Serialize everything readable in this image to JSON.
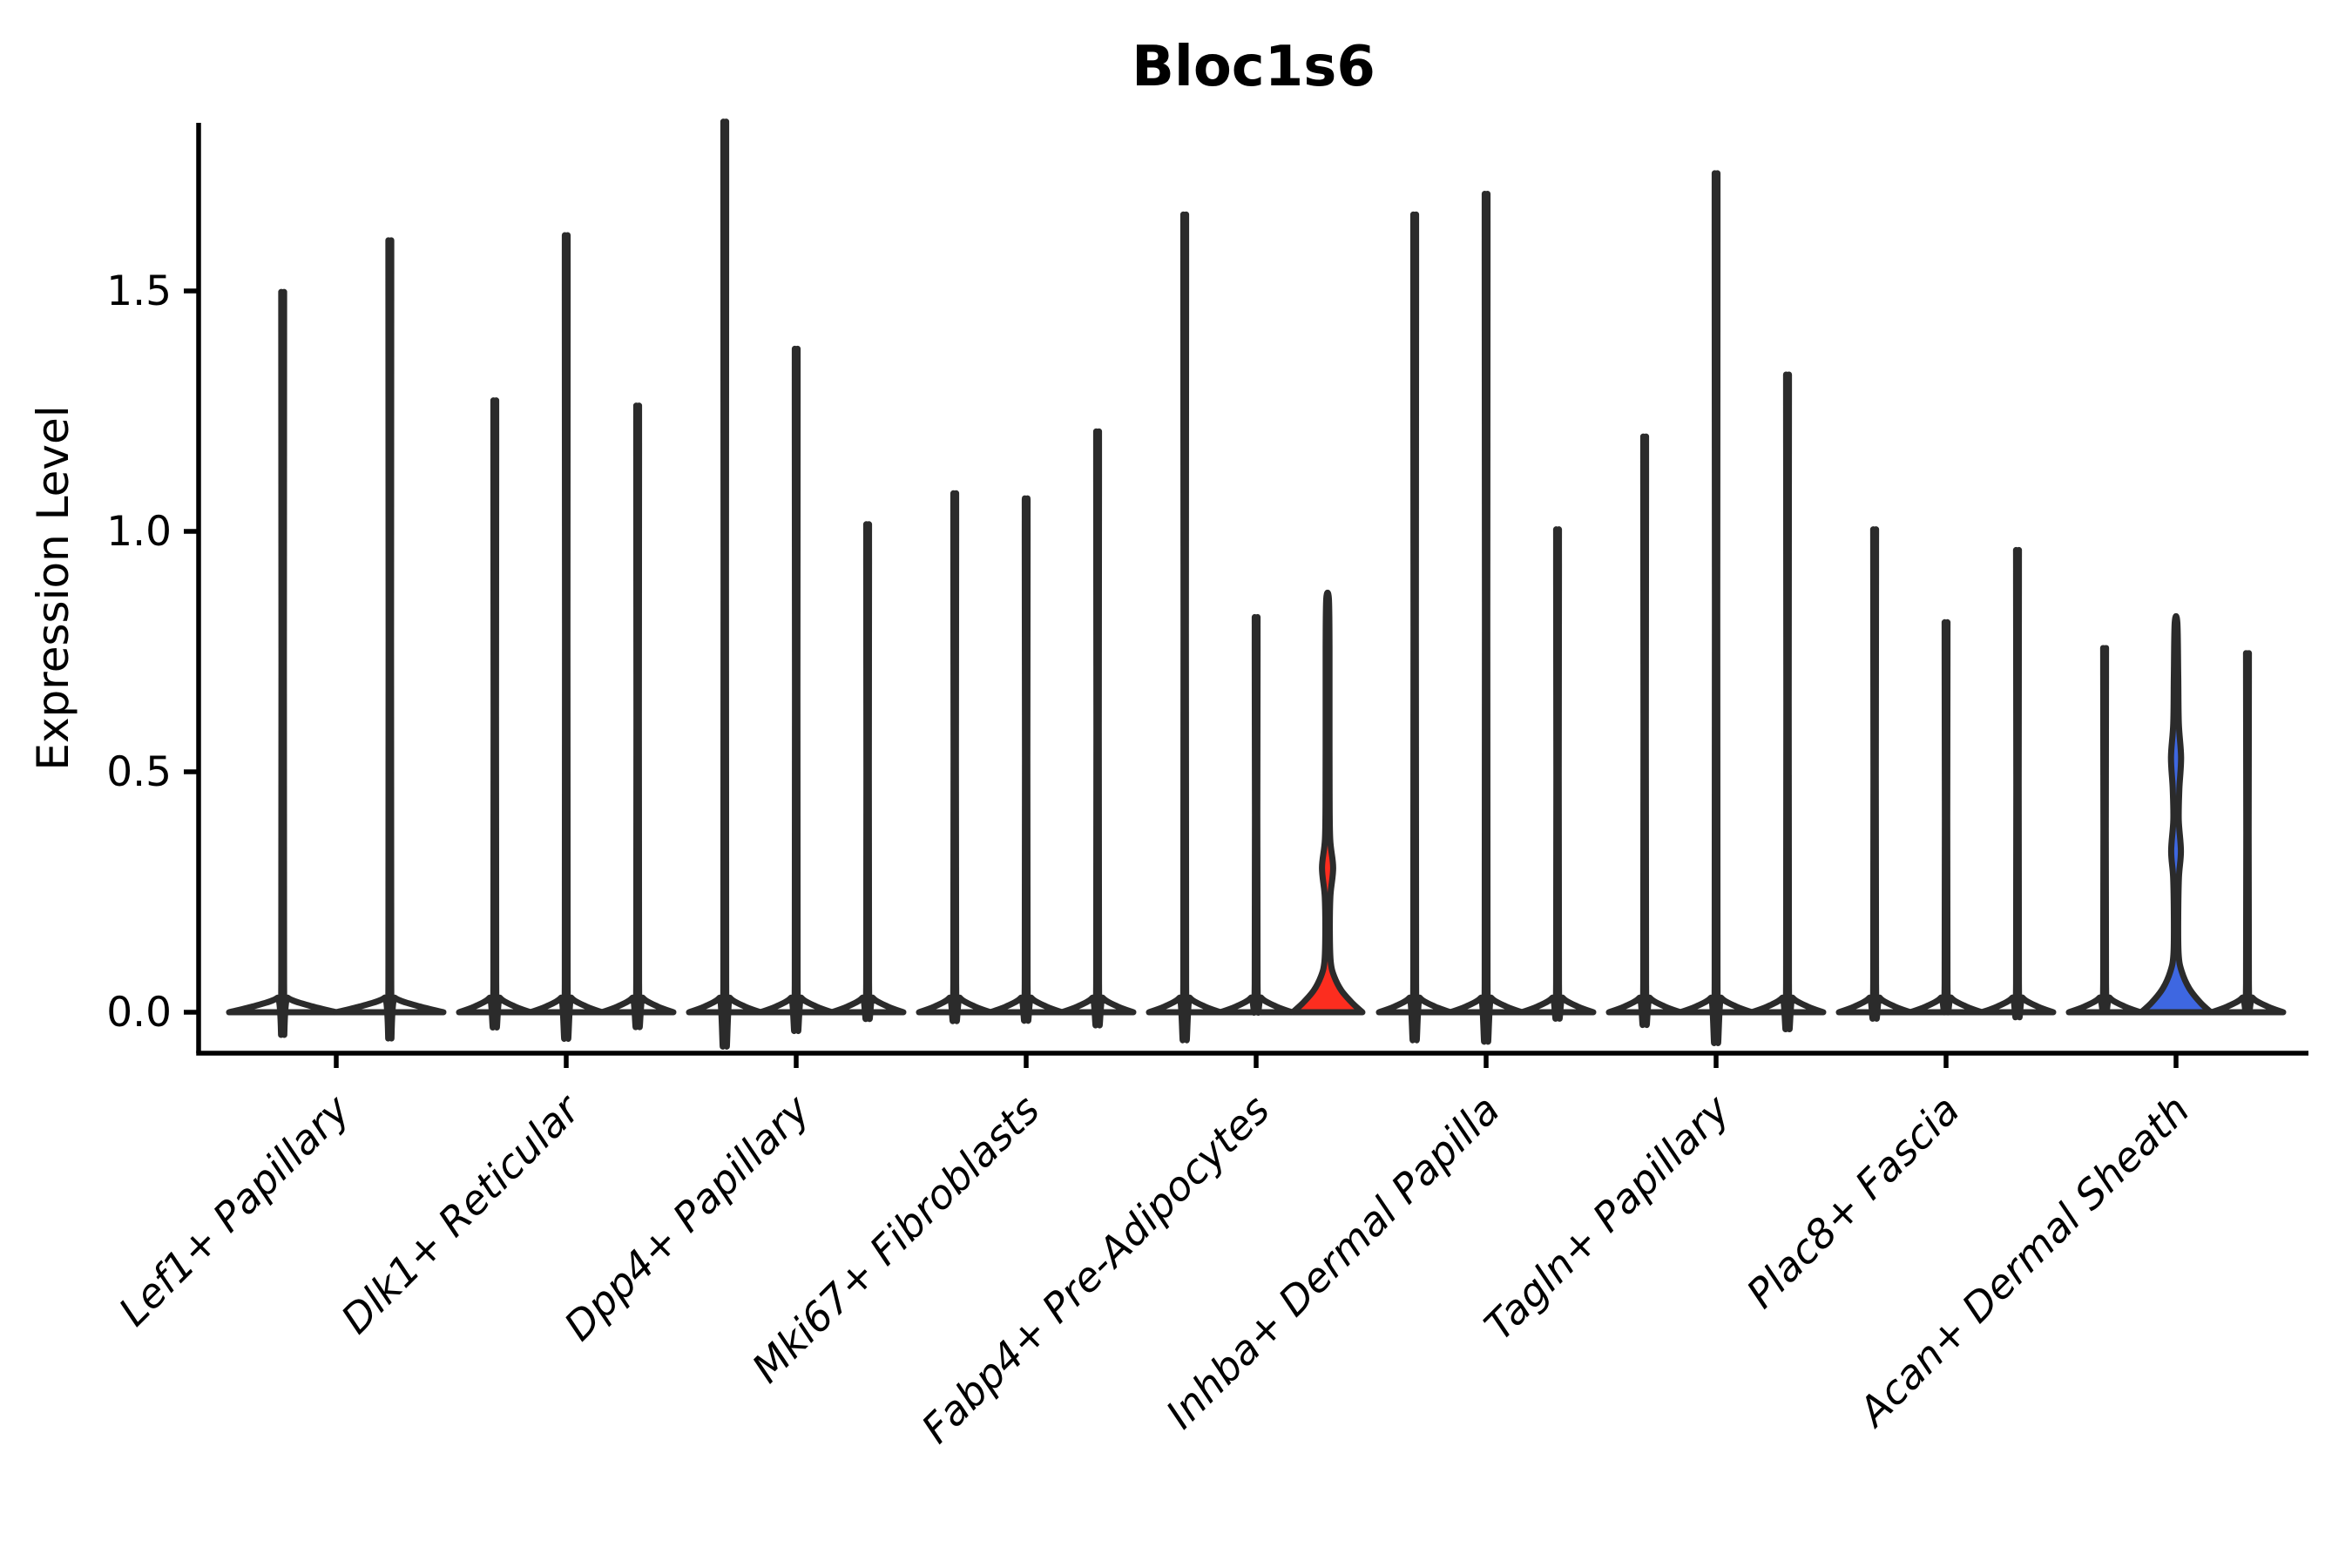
{
  "chart_data": {
    "type": "violin",
    "title": "Bloc1s6",
    "ylabel": "Expression Level",
    "xlabel": "",
    "ylim": [
      -0.09,
      1.85
    ],
    "grid": false,
    "legend": "none",
    "ytick_labels": [
      "0.0",
      "0.5",
      "1.0",
      "1.5"
    ],
    "ytick_values": [
      0.0,
      0.5,
      1.0,
      1.5
    ],
    "categories": [
      "Lef1+ Papillary",
      "Dlk1+ Reticular",
      "Dpp4+ Papillary",
      "Mki67+ Fibroblasts",
      "Fabp4+ Pre-Adipocytes",
      "Inhba+ Dermal Papilla",
      "Tagln+ Papillary",
      "Plac8+ Fascia",
      "Acan+ Dermal Sheath"
    ],
    "groups": [
      {
        "category": "Lef1+ Papillary",
        "violins": [
          {
            "peak": 1.42,
            "fill": "#ffffff"
          },
          {
            "peak": 1.52,
            "fill": "#ffffff"
          }
        ]
      },
      {
        "category": "Dlk1+ Reticular",
        "violins": [
          {
            "peak": 1.21,
            "fill": "#ffffff"
          },
          {
            "peak": 1.53,
            "fill": "#ffffff"
          },
          {
            "peak": 1.2,
            "fill": "#ffffff"
          }
        ]
      },
      {
        "category": "Dpp4+ Papillary",
        "violins": [
          {
            "peak": 1.75,
            "fill": "#ffffff"
          },
          {
            "peak": 1.31,
            "fill": "#ffffff"
          },
          {
            "peak": 0.97,
            "fill": "#ffffff"
          }
        ]
      },
      {
        "category": "Mki67+ Fibroblasts",
        "violins": [
          {
            "peak": 1.03,
            "fill": "#ffffff"
          },
          {
            "peak": 1.02,
            "fill": "#ffffff"
          },
          {
            "peak": 1.15,
            "fill": "#ffffff"
          }
        ]
      },
      {
        "category": "Fabp4+ Pre-Adipocytes",
        "violins": [
          {
            "peak": 1.57,
            "fill": "#ffffff"
          },
          {
            "peak": 0.79,
            "fill": "#ffffff"
          },
          {
            "peak": 0.86,
            "fill": "#fc2d1f",
            "highlight": "red",
            "profile": [
              [
                0,
                40
              ],
              [
                0.018,
                29
              ],
              [
                0.045,
                16
              ],
              [
                0.075,
                7.5
              ],
              [
                0.105,
                3.6
              ],
              [
                0.16,
                2.6
              ],
              [
                0.24,
                3.2
              ],
              [
                0.3,
                6.4
              ],
              [
                0.36,
                3.0
              ],
              [
                0.46,
                2.3
              ],
              [
                0.62,
                2.2
              ],
              [
                0.76,
                2.2
              ],
              [
                0.86,
                1.5
              ]
            ]
          }
        ]
      },
      {
        "category": "Inhba+ Dermal Papilla",
        "violins": [
          {
            "peak": 1.57,
            "fill": "#ffffff"
          },
          {
            "peak": 1.61,
            "fill": "#ffffff"
          },
          {
            "peak": 0.96,
            "fill": "#ffffff"
          }
        ]
      },
      {
        "category": "Tagln+ Papillary",
        "violins": [
          {
            "peak": 1.14,
            "fill": "#ffffff"
          },
          {
            "peak": 1.65,
            "fill": "#ffffff"
          },
          {
            "peak": 1.26,
            "fill": "#ffffff"
          }
        ]
      },
      {
        "category": "Plac8+ Fascia",
        "violins": [
          {
            "peak": 0.96,
            "fill": "#ffffff"
          },
          {
            "peak": 0.78,
            "fill": "#ffffff"
          },
          {
            "peak": 0.92,
            "fill": "#ffffff"
          }
        ]
      },
      {
        "category": "Acan+ Dermal Sheath",
        "violins": [
          {
            "peak": 0.73,
            "fill": "#ffffff"
          },
          {
            "peak": 0.81,
            "fill": "#3e67e1",
            "highlight": "blue",
            "profile": [
              [
                0,
                40
              ],
              [
                0.02,
                28
              ],
              [
                0.05,
                15
              ],
              [
                0.085,
                6.5
              ],
              [
                0.12,
                3.0
              ],
              [
                0.2,
                2.5
              ],
              [
                0.28,
                3.3
              ],
              [
                0.335,
                5.6
              ],
              [
                0.4,
                3.1
              ],
              [
                0.465,
                3.8
              ],
              [
                0.53,
                5.8
              ],
              [
                0.6,
                3.2
              ],
              [
                0.7,
                2.5
              ],
              [
                0.81,
                1.5
              ]
            ]
          },
          {
            "peak": 0.72,
            "fill": "#ffffff"
          }
        ]
      }
    ],
    "colors": {
      "violin_stroke": "#2b2b2b",
      "axis": "#000000",
      "background": "#ffffff",
      "highlight_red": "#fc2d1f",
      "highlight_blue": "#3e67e1"
    }
  }
}
